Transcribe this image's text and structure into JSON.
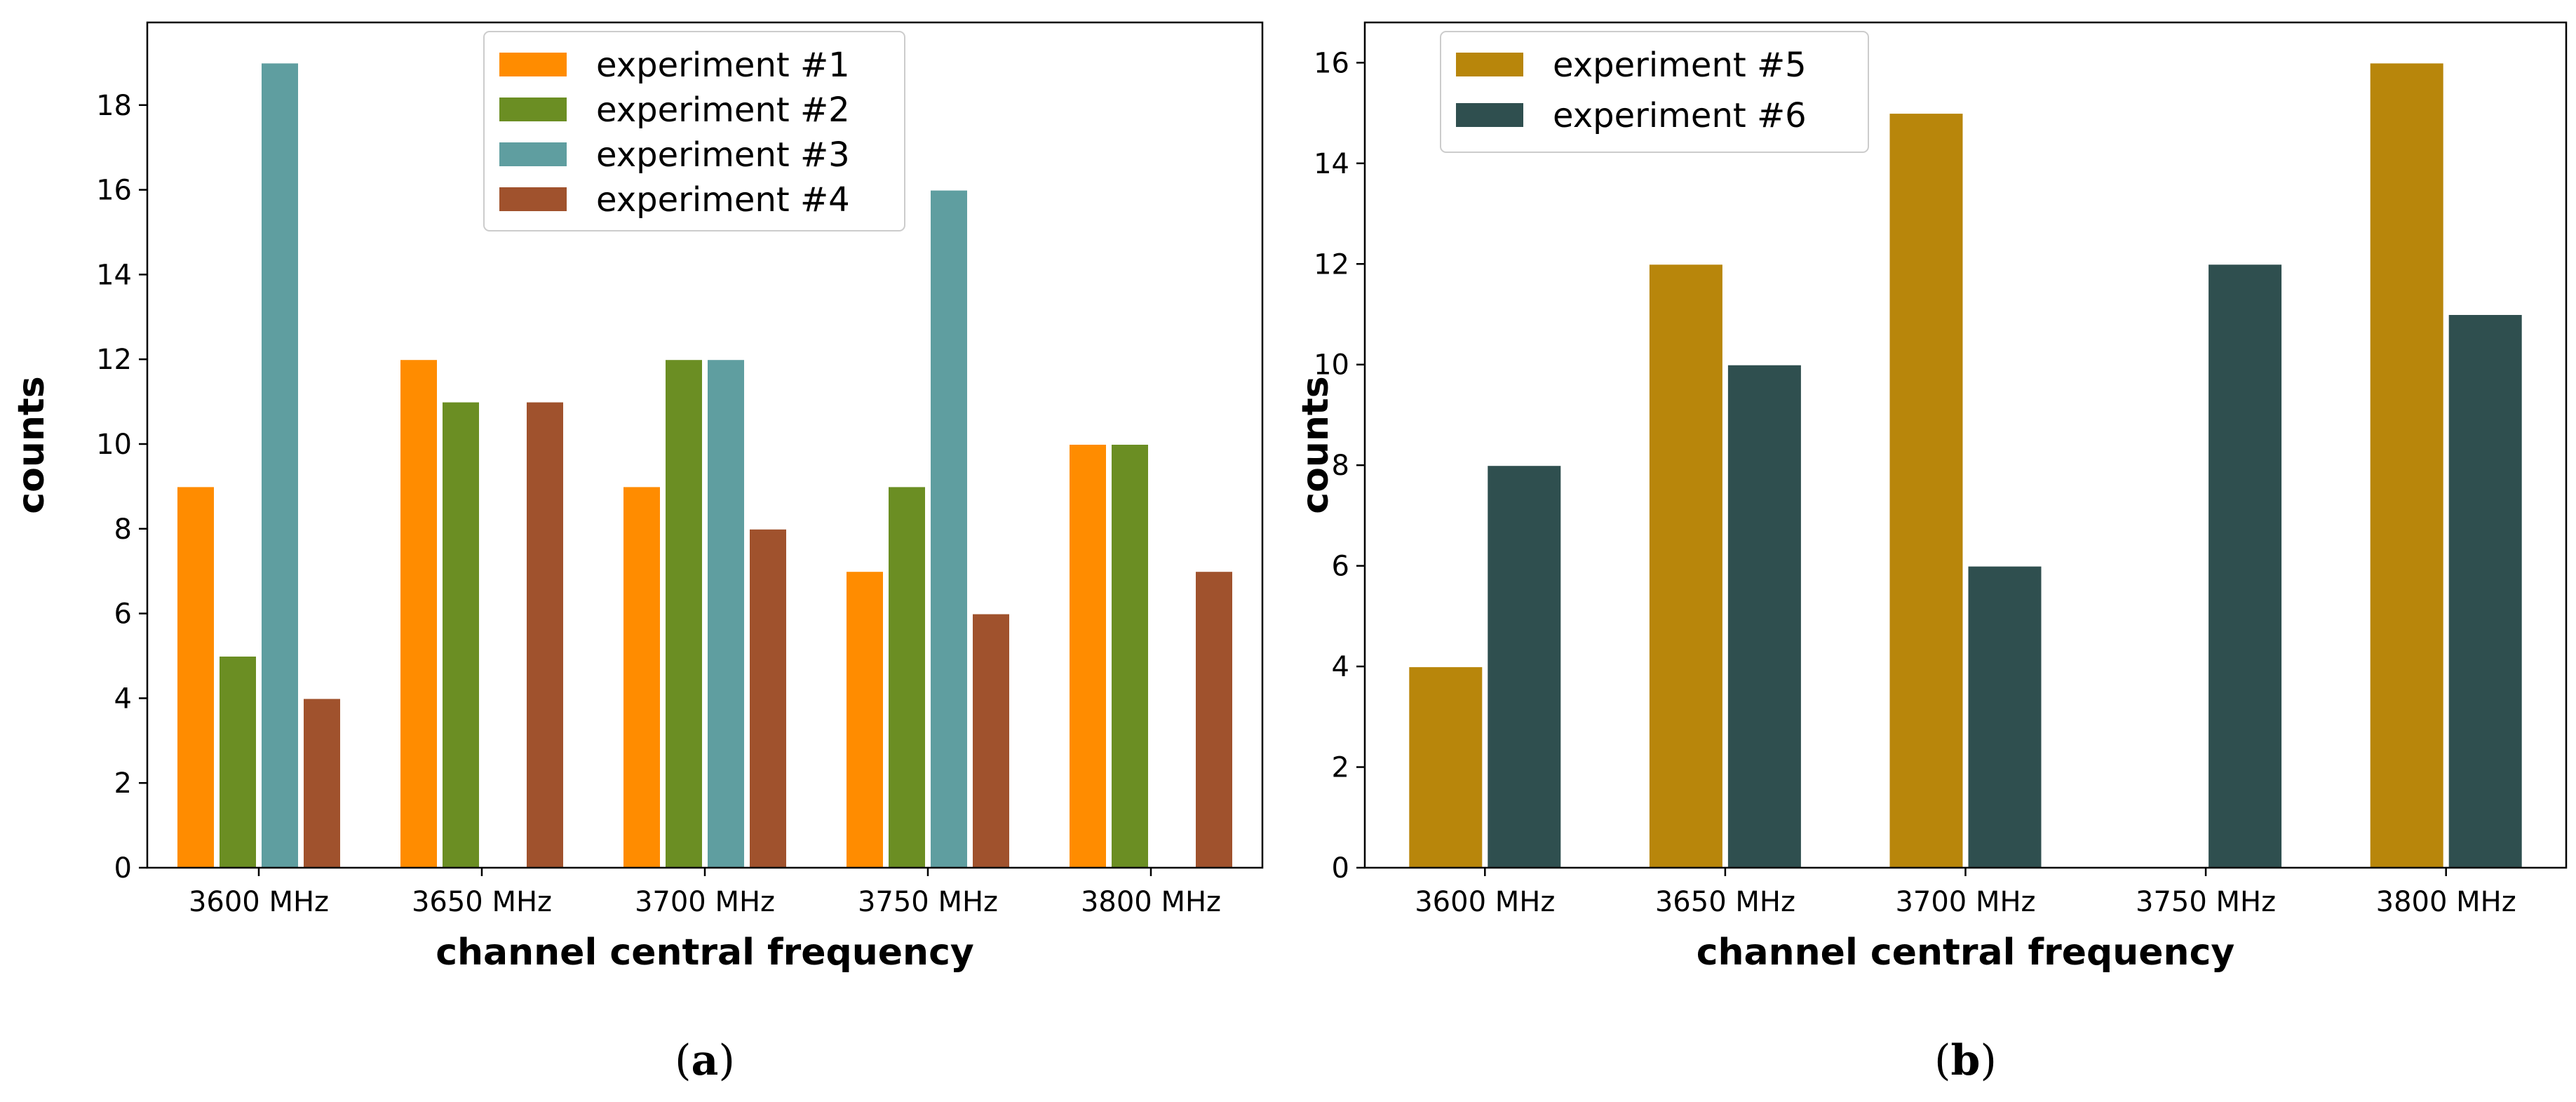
{
  "chart_data": [
    {
      "type": "bar",
      "caption": {
        "open": "(",
        "letter": "a",
        "close": ")"
      },
      "categories": [
        "3600 MHz",
        "3650 MHz",
        "3700 MHz",
        "3750 MHz",
        "3800 MHz"
      ],
      "series": [
        {
          "name": "experiment #1",
          "color": "#ff8c00",
          "values": [
            9,
            12,
            9,
            7,
            10
          ]
        },
        {
          "name": "experiment #2",
          "color": "#6b8e23",
          "values": [
            5,
            11,
            12,
            9,
            10
          ]
        },
        {
          "name": "experiment #3",
          "color": "#5f9ea0",
          "values": [
            19,
            0,
            12,
            16,
            0
          ]
        },
        {
          "name": "experiment #4",
          "color": "#a0522d",
          "values": [
            4,
            11,
            8,
            6,
            7
          ]
        }
      ],
      "xlabel": "channel central frequency",
      "ylabel": "counts",
      "ylim": [
        0,
        19.95
      ],
      "yticks": [
        0,
        2,
        4,
        6,
        8,
        10,
        12,
        14,
        16,
        18
      ],
      "legend_position": "upper-center",
      "grid": false
    },
    {
      "type": "bar",
      "caption": {
        "open": "(",
        "letter": "b",
        "close": ")"
      },
      "categories": [
        "3600 MHz",
        "3650 MHz",
        "3700 MHz",
        "3750 MHz",
        "3800 MHz"
      ],
      "series": [
        {
          "name": "experiment #5",
          "color": "#b8860b",
          "values": [
            4,
            12,
            15,
            0,
            16
          ]
        },
        {
          "name": "experiment #6",
          "color": "#2f4f4f",
          "values": [
            8,
            10,
            6,
            12,
            11
          ]
        }
      ],
      "xlabel": "channel central frequency",
      "ylabel": "counts",
      "ylim": [
        0,
        16.8
      ],
      "yticks": [
        0,
        2,
        4,
        6,
        8,
        10,
        12,
        14,
        16
      ],
      "legend_position": "upper-left",
      "grid": false
    }
  ]
}
